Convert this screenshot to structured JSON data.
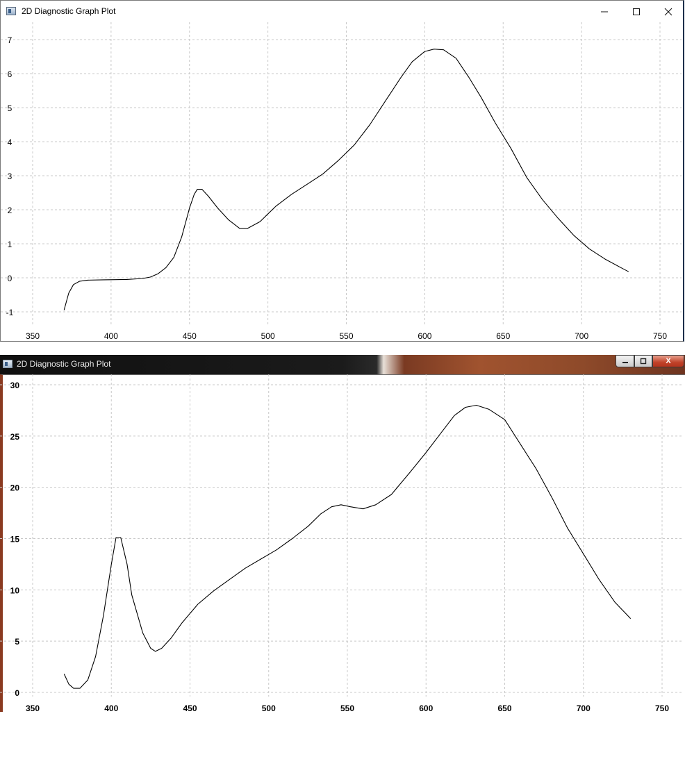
{
  "windows": [
    {
      "title": "2D Diagnostic Graph Plot",
      "controls": {
        "minimize_icon": "minimize-icon",
        "maximize_icon": "maximize-icon",
        "close_icon": "close-icon"
      },
      "chart_data": {
        "type": "line",
        "title": "",
        "xlabel": "",
        "ylabel": "",
        "xlim": [
          350,
          750
        ],
        "ylim": [
          -1,
          7
        ],
        "x_ticks": [
          350,
          400,
          450,
          500,
          550,
          600,
          650,
          700,
          750
        ],
        "y_ticks": [
          -1,
          0,
          1,
          2,
          3,
          4,
          5,
          6,
          7
        ],
        "grid": true,
        "series": [
          {
            "points": [
              [
                370,
                -0.95
              ],
              [
                373,
                -0.45
              ],
              [
                376,
                -0.2
              ],
              [
                380,
                -0.1
              ],
              [
                385,
                -0.07
              ],
              [
                395,
                -0.06
              ],
              [
                410,
                -0.05
              ],
              [
                420,
                -0.02
              ],
              [
                425,
                0.02
              ],
              [
                430,
                0.12
              ],
              [
                435,
                0.3
              ],
              [
                440,
                0.6
              ],
              [
                445,
                1.2
              ],
              [
                450,
                2.05
              ],
              [
                453,
                2.45
              ],
              [
                455,
                2.6
              ],
              [
                458,
                2.6
              ],
              [
                462,
                2.4
              ],
              [
                468,
                2.05
              ],
              [
                475,
                1.7
              ],
              [
                482,
                1.45
              ],
              [
                487,
                1.45
              ],
              [
                495,
                1.65
              ],
              [
                505,
                2.1
              ],
              [
                515,
                2.45
              ],
              [
                525,
                2.75
              ],
              [
                535,
                3.05
              ],
              [
                545,
                3.45
              ],
              [
                555,
                3.9
              ],
              [
                565,
                4.5
              ],
              [
                575,
                5.2
              ],
              [
                585,
                5.9
              ],
              [
                592,
                6.35
              ],
              [
                600,
                6.65
              ],
              [
                606,
                6.72
              ],
              [
                612,
                6.7
              ],
              [
                620,
                6.45
              ],
              [
                628,
                5.9
              ],
              [
                636,
                5.3
              ],
              [
                645,
                4.55
              ],
              [
                655,
                3.8
              ],
              [
                665,
                2.95
              ],
              [
                675,
                2.3
              ],
              [
                685,
                1.75
              ],
              [
                695,
                1.25
              ],
              [
                705,
                0.85
              ],
              [
                715,
                0.55
              ],
              [
                725,
                0.3
              ],
              [
                730,
                0.18
              ]
            ]
          }
        ]
      }
    },
    {
      "title": "2D Diagnostic Graph Plot",
      "controls": {
        "minimize_icon": "minimize-icon",
        "maximize_icon": "maximize-icon",
        "close_label": "X"
      },
      "chart_data": {
        "type": "line",
        "title": "",
        "xlabel": "",
        "ylabel": "",
        "xlim": [
          350,
          750
        ],
        "ylim": [
          0,
          30
        ],
        "x_ticks": [
          350,
          400,
          450,
          500,
          550,
          600,
          650,
          700,
          750
        ],
        "y_ticks": [
          0,
          5,
          10,
          15,
          20,
          25,
          30
        ],
        "grid": true,
        "series": [
          {
            "points": [
              [
                370,
                1.8
              ],
              [
                373,
                0.8
              ],
              [
                376,
                0.4
              ],
              [
                380,
                0.4
              ],
              [
                385,
                1.2
              ],
              [
                390,
                3.5
              ],
              [
                395,
                7.5
              ],
              [
                400,
                12.5
              ],
              [
                403,
                15.1
              ],
              [
                406,
                15.1
              ],
              [
                410,
                12.5
              ],
              [
                413,
                9.5
              ],
              [
                420,
                5.8
              ],
              [
                425,
                4.3
              ],
              [
                428,
                4.0
              ],
              [
                432,
                4.3
              ],
              [
                438,
                5.3
              ],
              [
                445,
                6.8
              ],
              [
                455,
                8.6
              ],
              [
                465,
                9.9
              ],
              [
                475,
                11.0
              ],
              [
                485,
                12.1
              ],
              [
                495,
                13.0
              ],
              [
                505,
                13.9
              ],
              [
                515,
                15.0
              ],
              [
                525,
                16.2
              ],
              [
                533,
                17.4
              ],
              [
                540,
                18.1
              ],
              [
                546,
                18.3
              ],
              [
                552,
                18.1
              ],
              [
                560,
                17.9
              ],
              [
                568,
                18.3
              ],
              [
                578,
                19.3
              ],
              [
                590,
                21.5
              ],
              [
                600,
                23.4
              ],
              [
                610,
                25.4
              ],
              [
                618,
                27.0
              ],
              [
                625,
                27.8
              ],
              [
                632,
                28.0
              ],
              [
                640,
                27.6
              ],
              [
                650,
                26.6
              ],
              [
                660,
                24.2
              ],
              [
                670,
                21.8
              ],
              [
                680,
                19.0
              ],
              [
                690,
                16.0
              ],
              [
                700,
                13.5
              ],
              [
                710,
                11.0
              ],
              [
                720,
                8.8
              ],
              [
                730,
                7.2
              ]
            ]
          }
        ]
      }
    }
  ]
}
